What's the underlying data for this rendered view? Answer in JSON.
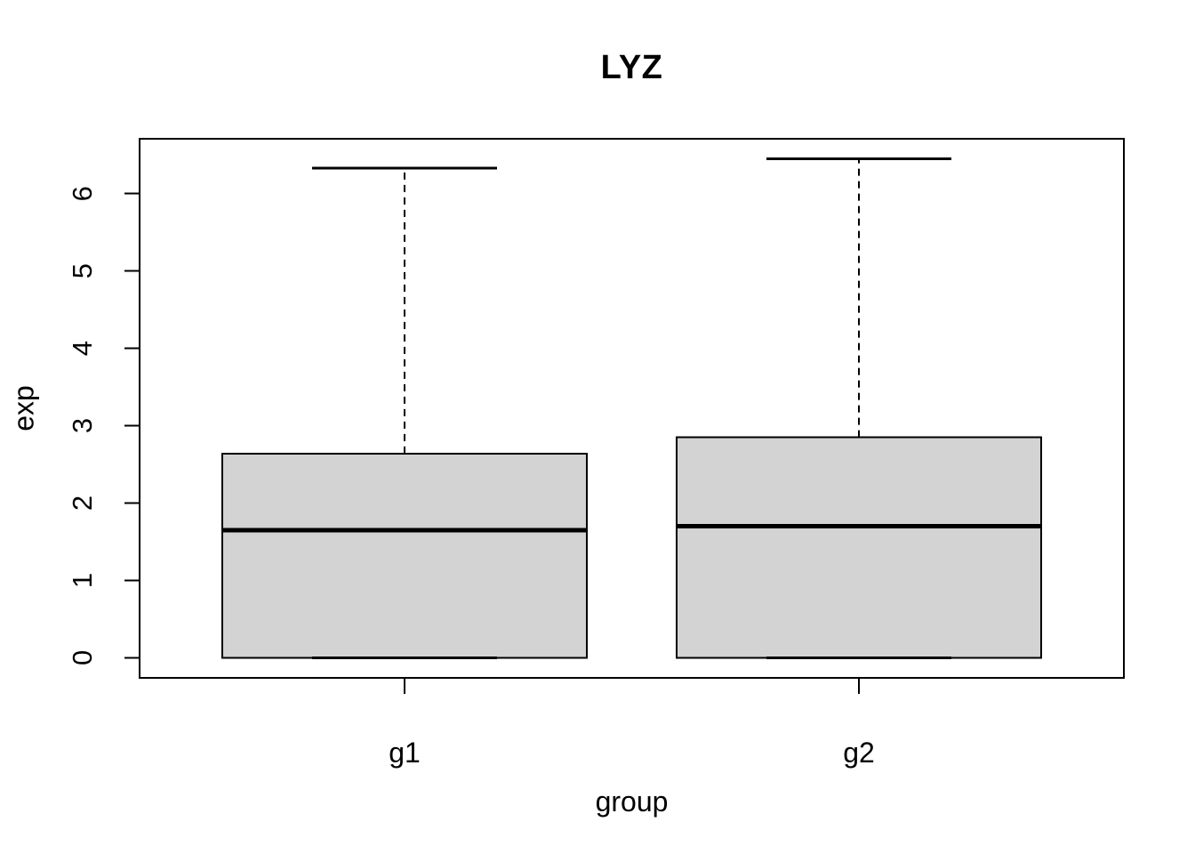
{
  "chart_data": {
    "type": "boxplot",
    "title": "LYZ",
    "xlabel": "group",
    "ylabel": "exp",
    "categories": [
      "g1",
      "g2"
    ],
    "series": [
      {
        "name": "g1",
        "whisker_low": 0,
        "q1": 0,
        "median": 1.65,
        "q3": 2.64,
        "whisker_high": 6.33
      },
      {
        "name": "g2",
        "whisker_low": 0,
        "q1": 0,
        "median": 1.7,
        "q3": 2.85,
        "whisker_high": 6.45
      }
    ],
    "yticks": [
      0,
      1,
      2,
      3,
      4,
      5,
      6
    ],
    "ylim": [
      -0.26,
      6.71
    ],
    "grid": false,
    "legend": "none",
    "colors": {
      "box_fill": "#d3d3d3",
      "line": "#000000",
      "background": "#ffffff"
    }
  }
}
